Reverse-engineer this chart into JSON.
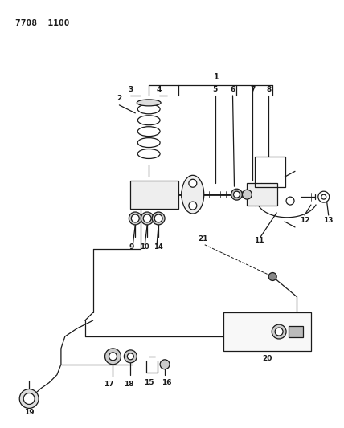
{
  "title": "7708 1100",
  "bg_color": "#ffffff",
  "line_color": "#1a1a1a",
  "figsize": [
    4.28,
    5.33
  ],
  "dpi": 100
}
